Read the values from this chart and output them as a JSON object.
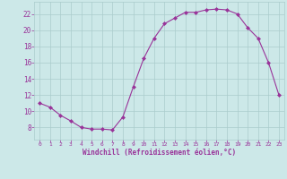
{
  "x": [
    0,
    1,
    2,
    3,
    4,
    5,
    6,
    7,
    8,
    9,
    10,
    11,
    12,
    13,
    14,
    15,
    16,
    17,
    18,
    19,
    20,
    21,
    22,
    23
  ],
  "y": [
    11.0,
    10.5,
    9.5,
    8.8,
    8.0,
    7.8,
    7.8,
    7.7,
    9.3,
    13.0,
    16.5,
    19.0,
    20.8,
    21.5,
    22.2,
    22.2,
    22.5,
    22.6,
    22.5,
    22.0,
    20.3,
    19.0,
    16.0,
    12.0
  ],
  "line_color": "#993399",
  "marker": "D",
  "marker_size": 2,
  "bg_color": "#cce8e8",
  "grid_color": "#aacccc",
  "tick_color": "#993399",
  "label_color": "#993399",
  "xlabel": "Windchill (Refroidissement éolien,°C)",
  "xlim": [
    -0.5,
    23.5
  ],
  "ylim": [
    6.5,
    23.5
  ],
  "yticks": [
    8,
    10,
    12,
    14,
    16,
    18,
    20,
    22
  ],
  "xticks": [
    0,
    1,
    2,
    3,
    4,
    5,
    6,
    7,
    8,
    9,
    10,
    11,
    12,
    13,
    14,
    15,
    16,
    17,
    18,
    19,
    20,
    21,
    22,
    23
  ],
  "figsize": [
    3.2,
    2.0
  ],
  "dpi": 100
}
